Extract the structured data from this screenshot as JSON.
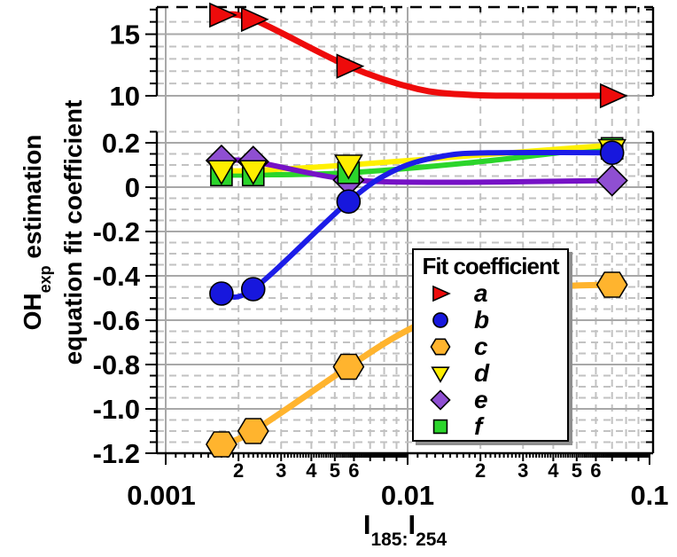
{
  "figure": {
    "background": "#FFFFFF"
  },
  "chart_data": {
    "type": "line",
    "x_scale": "log",
    "x_values": [
      0.0017,
      0.0023,
      0.0057,
      0.07
    ],
    "x_axis": {
      "title_parts": {
        "i1": "I",
        "sub1": "185:",
        "i2": "I",
        "sub2": "254"
      },
      "range": [
        0.00092,
        0.102
      ],
      "major_ticks": [
        {
          "v": 0.001,
          "label": "0.001"
        },
        {
          "v": 0.01,
          "label": "0.01"
        },
        {
          "v": 0.1,
          "label": "0.1"
        }
      ],
      "labeled_minors": [
        "2",
        "3",
        "4",
        "5",
        "6"
      ]
    },
    "y_axis": {
      "title_line1_pre": "OH",
      "title_line1_sub": "exp",
      "title_line1_post": " estimation",
      "title_line2": "equation fit coefficient"
    },
    "panels": {
      "top": {
        "ylim": [
          10,
          17.2
        ],
        "major_ticks": [
          {
            "v": 15,
            "label": "15"
          },
          {
            "v": 10,
            "label": "10"
          }
        ],
        "minor_ticks": [
          11,
          12,
          13,
          14,
          16,
          17
        ],
        "minor_gridlines": [
          11,
          12,
          13,
          14,
          16
        ]
      },
      "bottom": {
        "ylim": [
          -1.2,
          0.25
        ],
        "major_ticks": [
          {
            "v": 0.2,
            "label": "0.2"
          },
          {
            "v": 0,
            "label": "0"
          },
          {
            "v": -0.2,
            "label": "-0.2"
          },
          {
            "v": -0.4,
            "label": "-0.4"
          },
          {
            "v": -0.6,
            "label": "-0.6"
          },
          {
            "v": -0.8,
            "label": "-0.8"
          },
          {
            "v": -1.0,
            "label": "-1.0"
          },
          {
            "v": -1.2,
            "label": "-1.2"
          }
        ],
        "minor_step": 0.05
      }
    },
    "series": [
      {
        "name": "a",
        "panel": "top",
        "marker": "triangle-right",
        "fill": "#EE0B0B",
        "line_color": "#EE0B0B",
        "line_width": 7,
        "y": [
          16.55,
          16.2,
          12.4,
          10.0
        ],
        "line_points": [
          [
            0.0017,
            16.55
          ],
          [
            0.0023,
            16.2
          ],
          [
            0.0057,
            12.4
          ],
          [
            0.011,
            10.55
          ],
          [
            0.018,
            10.08
          ],
          [
            0.03,
            10.0
          ],
          [
            0.07,
            10.0
          ]
        ]
      },
      {
        "name": "b",
        "panel": "bottom",
        "marker": "circle",
        "fill": "#1717DD",
        "line_color": "#1C1CE8",
        "line_width": 6,
        "y": [
          -0.48,
          -0.46,
          -0.065,
          0.155
        ],
        "line_points": [
          [
            0.0017,
            -0.48
          ],
          [
            0.0023,
            -0.46
          ],
          [
            0.0057,
            -0.065
          ],
          [
            0.009,
            0.08
          ],
          [
            0.014,
            0.14
          ],
          [
            0.022,
            0.155
          ],
          [
            0.07,
            0.155
          ]
        ]
      },
      {
        "name": "c",
        "panel": "bottom",
        "marker": "hexagon",
        "fill": "#FFB42E",
        "line_color": "#FFB42E",
        "line_width": 7,
        "y": [
          -1.16,
          -1.1,
          -0.81,
          -0.44
        ],
        "line_points": [
          [
            0.0017,
            -1.16
          ],
          [
            0.0023,
            -1.1
          ],
          [
            0.0057,
            -0.81
          ],
          [
            0.01,
            -0.645
          ],
          [
            0.02,
            -0.5
          ],
          [
            0.04,
            -0.45
          ],
          [
            0.07,
            -0.44
          ]
        ]
      },
      {
        "name": "d",
        "panel": "bottom",
        "marker": "triangle-down",
        "fill": "#FFEE00",
        "line_color": "#FFF000",
        "line_width": 6,
        "y": [
          0.075,
          0.075,
          0.1,
          0.17
        ],
        "line_points": [
          [
            0.0017,
            0.075
          ],
          [
            0.0023,
            0.075
          ],
          [
            0.0057,
            0.1
          ],
          [
            0.02,
            0.145
          ],
          [
            0.07,
            0.19
          ]
        ]
      },
      {
        "name": "e",
        "panel": "bottom",
        "marker": "diamond",
        "fill": "#8F4FD2",
        "line_color": "#7612C6",
        "line_width": 6,
        "y": [
          0.12,
          0.115,
          0.032,
          0.03
        ],
        "line_points": [
          [
            0.0017,
            0.12
          ],
          [
            0.0023,
            0.115
          ],
          [
            0.0057,
            0.035
          ],
          [
            0.015,
            0.022
          ],
          [
            0.07,
            0.03
          ]
        ]
      },
      {
        "name": "f",
        "panel": "bottom",
        "marker": "square",
        "fill": "#2BD52B",
        "line_color": "#2BD52B",
        "line_width": 6,
        "y": [
          0.055,
          0.055,
          0.065,
          0.175
        ],
        "line_points": [
          [
            0.0017,
            0.055
          ],
          [
            0.0023,
            0.055
          ],
          [
            0.0057,
            0.065
          ],
          [
            0.02,
            0.115
          ],
          [
            0.07,
            0.185
          ]
        ]
      }
    ],
    "legend": {
      "title": "Fit coefficient",
      "entries": [
        {
          "series": "a",
          "label": "a"
        },
        {
          "series": "b",
          "label": "b"
        },
        {
          "series": "c",
          "label": "c"
        },
        {
          "series": "d",
          "label": "d"
        },
        {
          "series": "e",
          "label": "e"
        },
        {
          "series": "f",
          "label": "f"
        }
      ]
    },
    "style": {
      "grid_major_color": "#A8A8A8",
      "grid_minor_color": "#C2C2C2",
      "axis_color": "#000000",
      "marker_edge_color": "#000000"
    }
  }
}
